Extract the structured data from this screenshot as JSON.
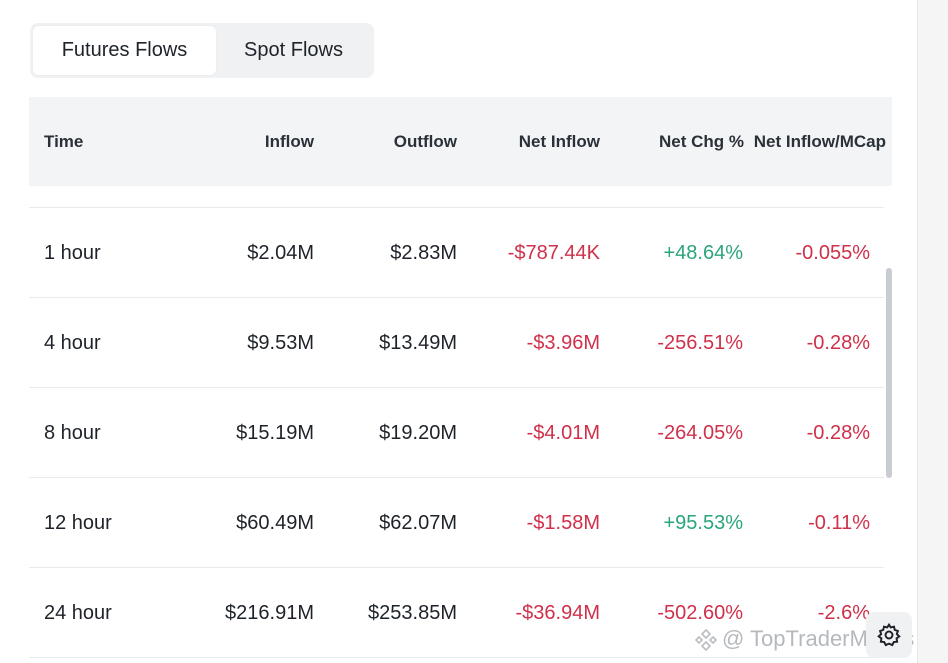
{
  "tabs": [
    {
      "label": "Futures Flows",
      "active": true
    },
    {
      "label": "Spot Flows",
      "active": false
    }
  ],
  "table": {
    "columns": [
      "Time",
      "Inflow",
      "Outflow",
      "Net Inflow",
      "Net Chg %",
      "Net Inflow/MCap"
    ],
    "rows": [
      {
        "time": "1 hour",
        "inflow": "$2.04M",
        "outflow": "$2.83M",
        "net_inflow": "-$787.44K",
        "net_chg": "+48.64%",
        "net_mcap": "-0.055%"
      },
      {
        "time": "4 hour",
        "inflow": "$9.53M",
        "outflow": "$13.49M",
        "net_inflow": "-$3.96M",
        "net_chg": "-256.51%",
        "net_mcap": "-0.28%"
      },
      {
        "time": "8 hour",
        "inflow": "$15.19M",
        "outflow": "$19.20M",
        "net_inflow": "-$4.01M",
        "net_chg": "-264.05%",
        "net_mcap": "-0.28%"
      },
      {
        "time": "12 hour",
        "inflow": "$60.49M",
        "outflow": "$62.07M",
        "net_inflow": "-$1.58M",
        "net_chg": "+95.53%",
        "net_mcap": "-0.11%"
      },
      {
        "time": "24 hour",
        "inflow": "$216.91M",
        "outflow": "$253.85M",
        "net_inflow": "-$36.94M",
        "net_chg": "-502.60%",
        "net_mcap": "-2.6%"
      }
    ]
  },
  "colors": {
    "negative": "#cf304a",
    "positive": "#2aa57a"
  },
  "watermark": {
    "text": "@ TopTraderMoves",
    "icon": "binance-square-icon"
  },
  "settings_icon": "gear-icon"
}
